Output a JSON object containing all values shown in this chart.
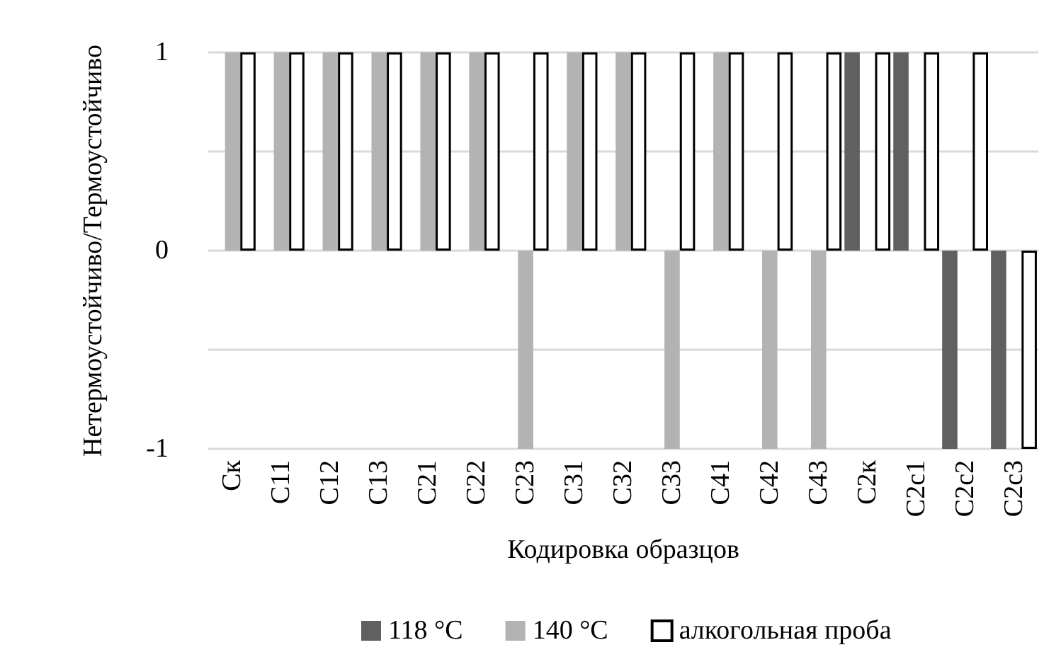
{
  "chart_data": {
    "type": "bar",
    "xlabel": "Кодировка образцов",
    "ylabel": "Нетермоустойчиво/Термоустойчиво",
    "categories": [
      "Ск",
      "С11",
      "С12",
      "С13",
      "С21",
      "С22",
      "С23",
      "С31",
      "С32",
      "С33",
      "С41",
      "С42",
      "С43",
      "С2к",
      "С2с1",
      "С2с2",
      "С2с3"
    ],
    "series": [
      {
        "name": "118 °C",
        "color": "#606060",
        "values": [
          0,
          0,
          0,
          0,
          0,
          0,
          0,
          0,
          0,
          0,
          0,
          0,
          0,
          1,
          1,
          -1,
          -1
        ]
      },
      {
        "name": "140 °C",
        "color": "#b3b3b3",
        "values": [
          1,
          1,
          1,
          1,
          1,
          1,
          -1,
          1,
          1,
          -1,
          1,
          -1,
          -1,
          0,
          0,
          0,
          0
        ]
      },
      {
        "name": "алкогольная проба",
        "color": "#ffffff",
        "values": [
          1,
          1,
          1,
          1,
          1,
          1,
          1,
          1,
          1,
          1,
          1,
          1,
          1,
          1,
          1,
          1,
          -1
        ]
      }
    ],
    "ylim": [
      -1,
      1
    ],
    "yticks": [
      -1,
      0,
      1
    ],
    "grid": "y",
    "legend": "bottom"
  }
}
